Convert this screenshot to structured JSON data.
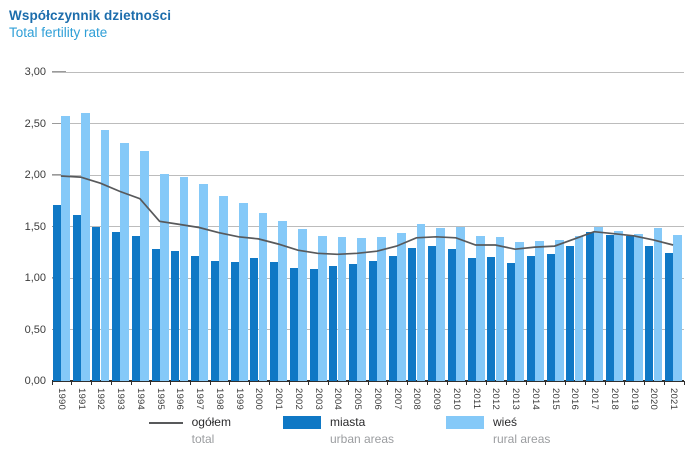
{
  "header": {
    "title_pl": "Współczynnik dzietności",
    "title_en": "Total fertility rate"
  },
  "chart_data": {
    "type": "bar",
    "note": "grouped bars (urban/rural) with total shown as line overlay",
    "years": [
      1990,
      1991,
      1992,
      1993,
      1994,
      1995,
      1996,
      1997,
      1998,
      1999,
      2000,
      2001,
      2002,
      2003,
      2004,
      2005,
      2006,
      2007,
      2008,
      2009,
      2010,
      2011,
      2012,
      2013,
      2014,
      2015,
      2016,
      2017,
      2018,
      2019,
      2020,
      2021
    ],
    "series": [
      {
        "name": "ogółem",
        "name_en": "total",
        "render": "line",
        "color": "#58595b",
        "values": [
          1.99,
          1.98,
          1.92,
          1.84,
          1.77,
          1.55,
          1.52,
          1.49,
          1.44,
          1.4,
          1.38,
          1.33,
          1.27,
          1.24,
          1.23,
          1.24,
          1.26,
          1.31,
          1.39,
          1.4,
          1.39,
          1.32,
          1.32,
          1.28,
          1.3,
          1.31,
          1.38,
          1.45,
          1.43,
          1.41,
          1.37,
          1.32
        ]
      },
      {
        "name": "miasta",
        "name_en": "urban areas",
        "render": "bar",
        "color": "#0f78c5",
        "values": [
          1.71,
          1.61,
          1.5,
          1.45,
          1.41,
          1.28,
          1.26,
          1.21,
          1.17,
          1.16,
          1.19,
          1.16,
          1.1,
          1.09,
          1.12,
          1.14,
          1.17,
          1.21,
          1.29,
          1.31,
          1.28,
          1.19,
          1.2,
          1.15,
          1.21,
          1.23,
          1.31,
          1.45,
          1.42,
          1.41,
          1.31,
          1.24
        ]
      },
      {
        "name": "wieś",
        "name_en": "rural areas",
        "render": "bar",
        "color": "#85c9f8",
        "values": [
          2.57,
          2.6,
          2.44,
          2.31,
          2.23,
          2.01,
          1.98,
          1.91,
          1.8,
          1.73,
          1.63,
          1.55,
          1.48,
          1.41,
          1.4,
          1.39,
          1.4,
          1.44,
          1.52,
          1.49,
          1.5,
          1.41,
          1.4,
          1.35,
          1.36,
          1.37,
          1.41,
          1.5,
          1.46,
          1.43,
          1.49,
          1.42
        ]
      }
    ],
    "ylim": [
      0,
      3
    ],
    "ytick_step": 0.5,
    "ytick_labels": [
      "0,00",
      "0,50",
      "1,00",
      "1,50",
      "2,00",
      "2,50",
      "3,00"
    ],
    "grid": true,
    "legend_position": "bottom"
  },
  "legend": {
    "items": [
      {
        "label": "ogółem",
        "sublabel": "total",
        "swatch": "line",
        "color": "#58595b"
      },
      {
        "label": "miasta",
        "sublabel": "urban areas",
        "swatch": "rect",
        "color": "#0f78c5"
      },
      {
        "label": "wieś",
        "sublabel": "rural areas",
        "swatch": "rect",
        "color": "#85c9f8"
      }
    ]
  }
}
